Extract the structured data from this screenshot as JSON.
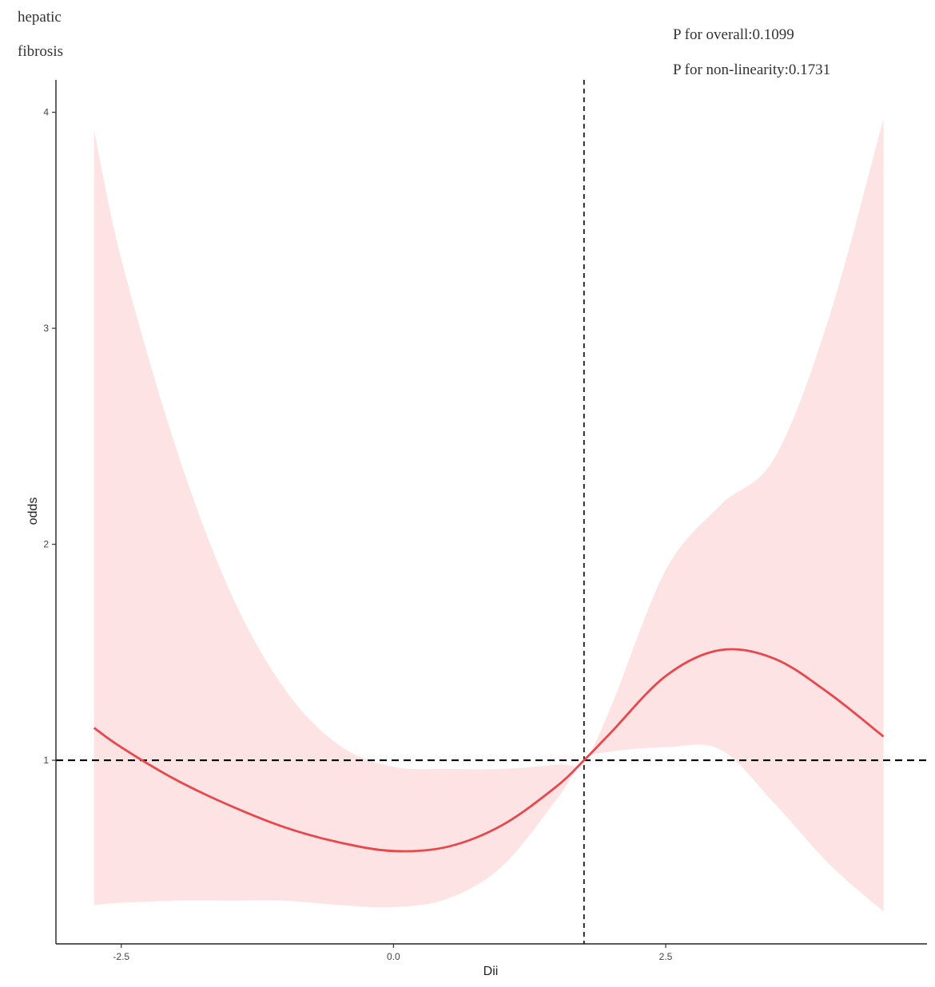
{
  "panel_label": [
    "hepatic",
    "fibrosis"
  ],
  "annotations": {
    "overall": "P for overall:0.1099",
    "nonlinearity": "P for non-linearity:0.1731"
  },
  "chart_data": {
    "type": "line",
    "xlabel": "Dii",
    "ylabel": "odds",
    "xlim": [
      -3.1,
      4.9
    ],
    "ylim": [
      0.15,
      4.15
    ],
    "x_ticks": [
      -2.5,
      0.0,
      2.5
    ],
    "x_tick_labels": [
      "-2.5",
      "0.0",
      "2.5"
    ],
    "y_ticks": [
      1,
      2,
      3,
      4
    ],
    "y_tick_labels": [
      "1",
      "2",
      "3",
      "4"
    ],
    "reference_lines": {
      "hline_y": 1,
      "vline_x": 1.75
    },
    "grid": false,
    "colors": {
      "line": "#e8474b",
      "band": "#fde3e4",
      "reference": "#000000"
    },
    "series": [
      {
        "x": [
          -2.75,
          -2.5,
          -2.0,
          -1.5,
          -1.0,
          -0.5,
          0.0,
          0.5,
          1.0,
          1.5,
          1.75,
          2.0,
          2.5,
          3.0,
          3.5,
          4.0,
          4.5
        ],
        "y": [
          1.15,
          1.06,
          0.91,
          0.79,
          0.69,
          0.62,
          0.58,
          0.6,
          0.7,
          0.88,
          1.0,
          1.13,
          1.39,
          1.51,
          1.47,
          1.31,
          1.11
        ],
        "lower": [
          0.33,
          0.34,
          0.35,
          0.35,
          0.35,
          0.33,
          0.32,
          0.36,
          0.51,
          0.82,
          1.0,
          1.04,
          1.06,
          1.05,
          0.8,
          0.52,
          0.3
        ],
        "upper": [
          3.92,
          3.32,
          2.45,
          1.78,
          1.33,
          1.07,
          0.97,
          0.96,
          0.96,
          0.98,
          1.0,
          1.25,
          1.88,
          2.18,
          2.4,
          3.05,
          3.97
        ]
      }
    ]
  }
}
